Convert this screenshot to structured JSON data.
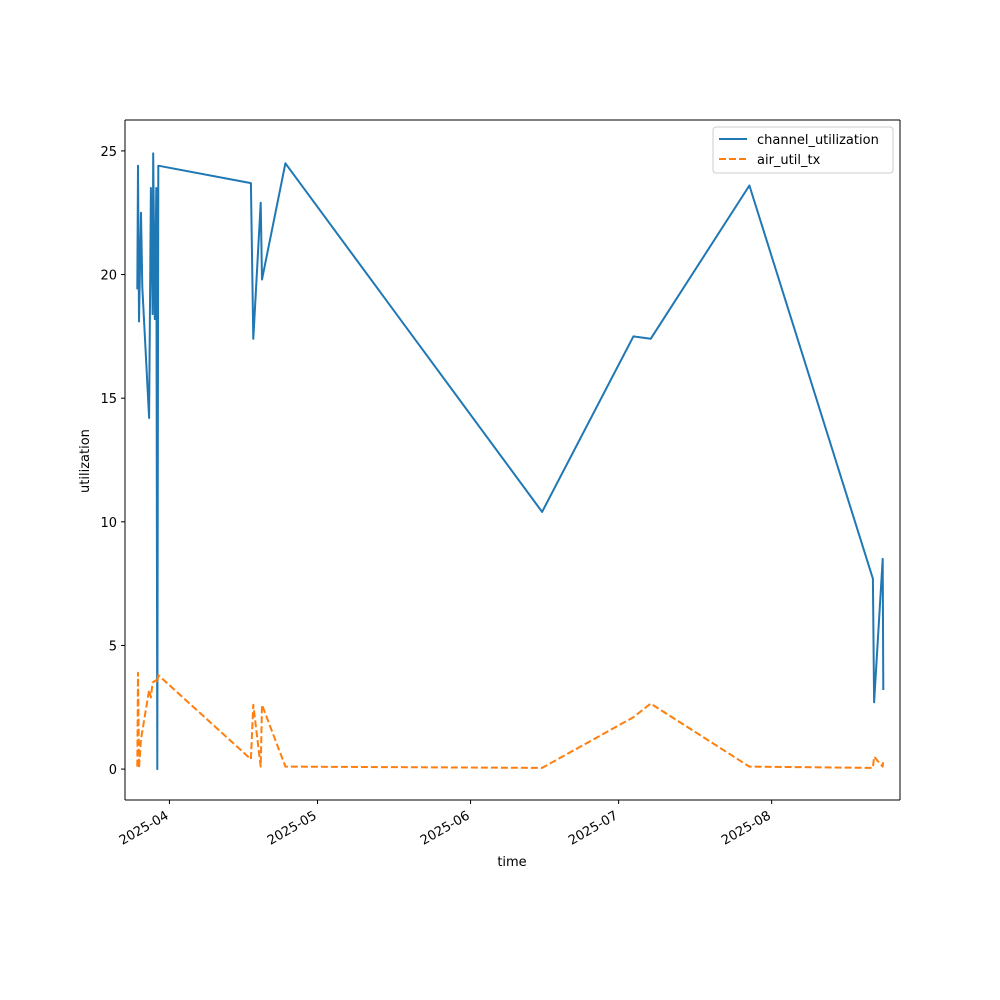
{
  "chart_data": {
    "type": "line",
    "title": "",
    "xlabel": "time",
    "ylabel": "utilization",
    "x_axis_type": "date",
    "xlim": [
      "2025-03-23",
      "2025-08-27"
    ],
    "ylim": [
      -1.25,
      26.25
    ],
    "x_ticks": [
      "2025-04-01",
      "2025-05-01",
      "2025-06-01",
      "2025-07-01",
      "2025-08-01"
    ],
    "x_tick_labels": [
      "2025-04",
      "2025-05",
      "2025-06",
      "2025-07",
      "2025-08"
    ],
    "y_ticks": [
      0,
      5,
      10,
      15,
      20,
      25
    ],
    "y_tick_labels": [
      "0",
      "5",
      "10",
      "15",
      "20",
      "25"
    ],
    "grid": false,
    "legend": {
      "position": "top-right"
    },
    "series": [
      {
        "name": "channel_utilization",
        "color": "#1f77b4",
        "line_style": "solid",
        "points": [
          [
            "2025-03-25T12:00",
            19.4
          ],
          [
            "2025-03-25T15:00",
            24.4
          ],
          [
            "2025-03-25T20:00",
            18.1
          ],
          [
            "2025-03-26T06:00",
            22.5
          ],
          [
            "2025-03-26T12:00",
            19.5
          ],
          [
            "2025-03-27T21:00",
            14.2
          ],
          [
            "2025-03-28T06:00",
            23.5
          ],
          [
            "2025-03-28T14:00",
            18.4
          ],
          [
            "2025-03-28T17:00",
            24.9
          ],
          [
            "2025-03-29T01:00",
            18.2
          ],
          [
            "2025-03-29T08:00",
            23.5
          ],
          [
            "2025-03-29T13:00",
            0.0
          ],
          [
            "2025-03-29T18:00",
            24.4
          ],
          [
            "2025-04-17T12:00",
            23.7
          ],
          [
            "2025-04-18T00:00",
            17.4
          ],
          [
            "2025-04-19T12:00",
            22.9
          ],
          [
            "2025-04-19T18:00",
            19.8
          ],
          [
            "2025-04-24T12:00",
            24.5
          ],
          [
            "2025-06-15T12:00",
            10.4
          ],
          [
            "2025-07-04T00:00",
            17.5
          ],
          [
            "2025-07-07T12:00",
            17.4
          ],
          [
            "2025-07-27T12:00",
            23.6
          ],
          [
            "2025-08-21T12:00",
            7.7
          ],
          [
            "2025-08-21T18:00",
            2.7
          ],
          [
            "2025-08-23T12:00",
            8.5
          ],
          [
            "2025-08-23T15:00",
            3.2
          ]
        ]
      },
      {
        "name": "air_util_tx",
        "color": "#ff7f0e",
        "line_style": "dashed",
        "points": [
          [
            "2025-03-25T12:00",
            0.1
          ],
          [
            "2025-03-25T15:00",
            3.9
          ],
          [
            "2025-03-25T20:00",
            0.05
          ],
          [
            "2025-03-26T06:00",
            1.2
          ],
          [
            "2025-03-27T21:00",
            3.2
          ],
          [
            "2025-03-28T06:00",
            2.9
          ],
          [
            "2025-03-28T14:00",
            3.5
          ],
          [
            "2025-03-29T08:00",
            3.6
          ],
          [
            "2025-03-29T13:00",
            3.5
          ],
          [
            "2025-03-29T18:00",
            3.8
          ],
          [
            "2025-04-17T12:00",
            0.4
          ],
          [
            "2025-04-18T00:00",
            2.6
          ],
          [
            "2025-04-19T12:00",
            0.1
          ],
          [
            "2025-04-19T18:00",
            2.6
          ],
          [
            "2025-04-24T12:00",
            0.1
          ],
          [
            "2025-06-15T12:00",
            0.05
          ],
          [
            "2025-07-04T00:00",
            2.1
          ],
          [
            "2025-07-07T12:00",
            2.65
          ],
          [
            "2025-07-27T12:00",
            0.1
          ],
          [
            "2025-08-21T12:00",
            0.05
          ],
          [
            "2025-08-21T18:00",
            0.5
          ],
          [
            "2025-08-23T12:00",
            0.1
          ],
          [
            "2025-08-23T15:00",
            0.4
          ]
        ]
      }
    ]
  }
}
